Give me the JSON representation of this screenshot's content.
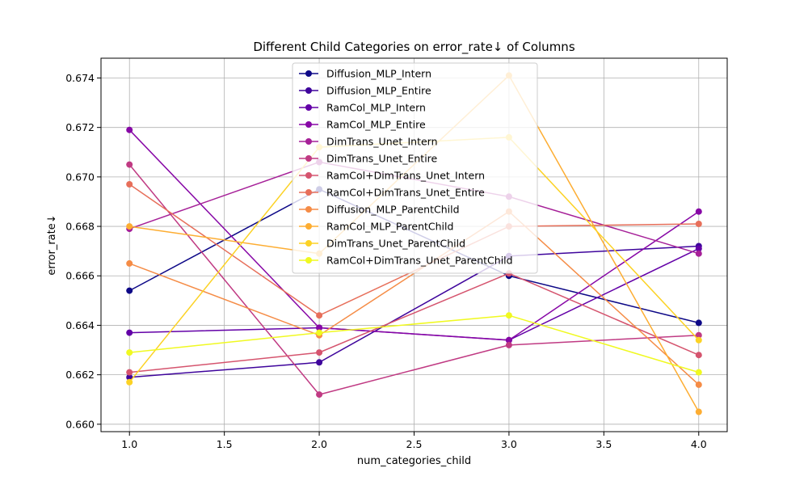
{
  "chart_data": {
    "type": "line",
    "title": "Different Child Categories on error_rate↓ of Columns",
    "xlabel": "num_categories_child",
    "ylabel": "error_rate↓",
    "xlim": [
      0.85,
      4.15
    ],
    "ylim": [
      0.6597,
      0.6748
    ],
    "x_ticks": [
      "1.0",
      "1.5",
      "2.0",
      "2.5",
      "3.0",
      "3.5",
      "4.0"
    ],
    "y_ticks": [
      "0.660",
      "0.662",
      "0.664",
      "0.666",
      "0.668",
      "0.670",
      "0.672",
      "0.674"
    ],
    "grid": true,
    "legend_position": "top-center",
    "x": [
      1.0,
      2.0,
      3.0,
      4.0
    ],
    "series": [
      {
        "name": "Diffusion_MLP_Intern",
        "color": "#0d0887",
        "values": [
          0.6654,
          0.6695,
          0.666,
          0.6641
        ]
      },
      {
        "name": "Diffusion_MLP_Entire",
        "color": "#3e049c",
        "values": [
          0.6619,
          0.6625,
          0.6668,
          0.6672
        ]
      },
      {
        "name": "RamCol_MLP_Intern",
        "color": "#6300a7",
        "values": [
          0.6637,
          0.6639,
          0.6634,
          0.6671
        ]
      },
      {
        "name": "RamCol_MLP_Entire",
        "color": "#8707a6",
        "values": [
          0.6719,
          0.6639,
          0.6634,
          0.6686
        ]
      },
      {
        "name": "DimTrans_Unet_Intern",
        "color": "#a62098",
        "values": [
          0.6679,
          0.6706,
          0.6692,
          0.6669
        ]
      },
      {
        "name": "DimTrans_Unet_Entire",
        "color": "#c03a83",
        "values": [
          0.6705,
          0.6612,
          0.6632,
          0.6636
        ]
      },
      {
        "name": "RamCol+DimTrans_Unet_Intern",
        "color": "#d5546e",
        "values": [
          0.6621,
          0.6629,
          0.6661,
          0.6628
        ]
      },
      {
        "name": "RamCol+DimTrans_Unet_Entire",
        "color": "#e76f5a",
        "values": [
          0.6697,
          0.6644,
          0.668,
          0.6681
        ]
      },
      {
        "name": "Diffusion_MLP_ParentChild",
        "color": "#f58c46",
        "values": [
          0.6665,
          0.6636,
          0.6686,
          0.6616
        ]
      },
      {
        "name": "RamCol_MLP_ParentChild",
        "color": "#fdad32",
        "values": [
          0.668,
          0.6669,
          0.6741,
          0.6605
        ]
      },
      {
        "name": "DimTrans_Unet_ParentChild",
        "color": "#fcd225",
        "values": [
          0.6617,
          0.6712,
          0.6716,
          0.6634
        ]
      },
      {
        "name": "RamCol+DimTrans_Unet_ParentChild",
        "color": "#f0f921",
        "values": [
          0.6629,
          0.6637,
          0.6644,
          0.6621
        ]
      }
    ]
  }
}
